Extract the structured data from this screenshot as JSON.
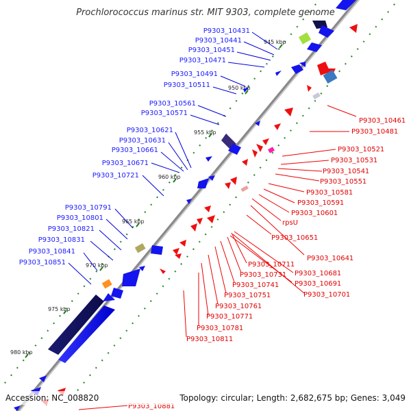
{
  "header": {
    "title": "Prochlorococcus marinus str. MIT 9303, complete genome"
  },
  "footer": {
    "accession": "Accession: NC_008820",
    "topology": "Topology: circular; Length: 2,682,675 bp; Genes: 3,049"
  },
  "ticks": [
    {
      "label": "945 kbp"
    },
    {
      "label": "950 kbp"
    },
    {
      "label": "955 kbp"
    },
    {
      "label": "960 kbp"
    },
    {
      "label": "965 kbp"
    },
    {
      "label": "970 kbp"
    },
    {
      "label": "975 kbp"
    },
    {
      "label": "980 kbp"
    }
  ],
  "left_labels": [
    "P9303_10431",
    "P9303_10441",
    "P9303_10451",
    "P9303_10471",
    "P9303_10491",
    "P9303_10511",
    "P9303_10561",
    "P9303_10571",
    "P9303_10621",
    "P9303_10631",
    "P9303_10661",
    "P9303_10671",
    "P9303_10721",
    "P9303_10791",
    "P9303_10801",
    "P9303_10821",
    "P9303_10831",
    "P9303_10841",
    "P9303_10851"
  ],
  "right_labels": [
    "P9303_10461",
    "P9303_10481",
    "P9303_10521",
    "P9303_10531",
    "P9303_10541",
    "P9303_10551",
    "P9303_10581",
    "P9303_10591",
    "P9303_10601",
    "rpsU",
    "P9303_10651",
    "P9303_10641",
    "P9303_10711",
    "P9303_10681",
    "P9303_10731",
    "P9303_10691",
    "P9303_10741",
    "P9303_10701",
    "P9303_10751",
    "P9303_10761",
    "P9303_10771",
    "P9303_10781",
    "P9303_10811",
    "P9303_10881"
  ],
  "colors": {
    "forward": "#1111ee",
    "reverse": "#ee1111",
    "backbone": "#9a9a9a",
    "dots": "#2a8a2a"
  }
}
